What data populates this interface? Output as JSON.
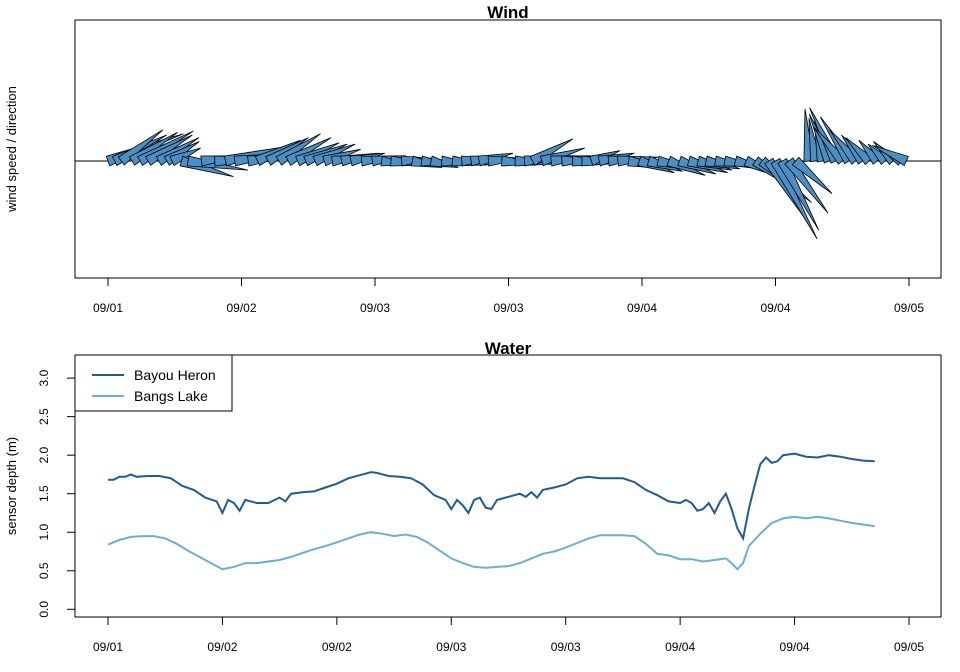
{
  "chart_data": [
    {
      "type": "wind-barb",
      "title": "Wind",
      "ylabel": "wind speed / direction",
      "x_ticks": [
        "09/01",
        "09/02",
        "09/03",
        "09/03",
        "09/04",
        "09/04",
        "09/05"
      ],
      "arrow_color": "#4b8fc4",
      "vectors": [
        [
          0.0,
          5.8,
          2.1
        ],
        [
          0.05,
          4.0,
          2.0
        ],
        [
          0.1,
          3.2,
          2.4
        ],
        [
          0.18,
          3.5,
          2.2
        ],
        [
          0.24,
          4.1,
          2.3
        ],
        [
          0.3,
          3.4,
          2.0
        ],
        [
          0.38,
          3.1,
          1.8
        ],
        [
          0.44,
          2.5,
          1.5
        ],
        [
          0.48,
          2.2,
          1.0
        ],
        [
          0.55,
          4.0,
          -1.2
        ],
        [
          0.6,
          4.6,
          -0.7
        ],
        [
          0.7,
          3.2,
          0.4
        ],
        [
          0.8,
          4.5,
          0.2
        ],
        [
          0.88,
          5.3,
          1.2
        ],
        [
          0.95,
          4.2,
          0.6
        ],
        [
          1.05,
          3.6,
          0.5
        ],
        [
          1.12,
          3.3,
          1.6
        ],
        [
          1.2,
          3.1,
          1.8
        ],
        [
          1.28,
          3.2,
          2.1
        ],
        [
          1.35,
          3.3,
          1.8
        ],
        [
          1.42,
          3.2,
          1.4
        ],
        [
          1.48,
          3.2,
          1.3
        ],
        [
          1.55,
          3.1,
          1.3
        ],
        [
          1.62,
          2.8,
          0.9
        ],
        [
          1.68,
          2.7,
          0.4
        ],
        [
          1.75,
          2.9,
          0.6
        ],
        [
          1.82,
          2.6,
          0.6
        ],
        [
          1.9,
          2.4,
          0.2
        ],
        [
          1.98,
          2.6,
          0.4
        ],
        [
          2.05,
          2.0,
          -0.3
        ],
        [
          2.12,
          3.5,
          -0.3
        ],
        [
          2.2,
          2.5,
          0.2
        ],
        [
          2.28,
          2.3,
          -0.5
        ],
        [
          2.35,
          2.2,
          -0.3
        ],
        [
          2.42,
          2.1,
          -0.5
        ],
        [
          2.5,
          2.6,
          -0.3
        ],
        [
          2.58,
          2.8,
          -0.3
        ],
        [
          2.65,
          2.6,
          0.2
        ],
        [
          2.72,
          2.4,
          0.4
        ],
        [
          2.78,
          2.6,
          0.6
        ],
        [
          2.85,
          2.8,
          0.2
        ],
        [
          2.95,
          3.0,
          -0.2
        ],
        [
          3.05,
          3.5,
          -0.2
        ],
        [
          3.12,
          3.9,
          0.4
        ],
        [
          3.18,
          3.1,
          1.7
        ],
        [
          3.25,
          3.3,
          1.0
        ],
        [
          3.32,
          3.2,
          0.4
        ],
        [
          3.4,
          3.0,
          0.1
        ],
        [
          3.48,
          3.5,
          -0.2
        ],
        [
          3.55,
          3.6,
          -0.1
        ],
        [
          3.62,
          2.2,
          0.8
        ],
        [
          3.68,
          2.7,
          0.6
        ],
        [
          3.75,
          2.5,
          0.3
        ],
        [
          3.82,
          3.1,
          0.3
        ],
        [
          3.9,
          3.2,
          -0.6
        ],
        [
          3.98,
          2.7,
          -0.9
        ],
        [
          4.05,
          2.6,
          -0.8
        ],
        [
          4.12,
          3.2,
          -0.7
        ],
        [
          4.2,
          2.8,
          -1.1
        ],
        [
          4.28,
          2.8,
          -1.0
        ],
        [
          4.35,
          3.0,
          -0.9
        ],
        [
          4.42,
          2.6,
          -0.7
        ],
        [
          4.48,
          2.6,
          -0.6
        ],
        [
          4.55,
          2.4,
          -0.4
        ],
        [
          4.62,
          2.5,
          -0.4
        ],
        [
          4.7,
          2.7,
          -0.7
        ],
        [
          4.78,
          3.1,
          -1.4
        ],
        [
          4.85,
          3.6,
          -2.5
        ],
        [
          4.9,
          3.8,
          -3.2
        ],
        [
          4.95,
          3.0,
          -4.7
        ],
        [
          5.0,
          3.2,
          -6.0
        ],
        [
          5.05,
          2.8,
          -5.3
        ],
        [
          5.1,
          3.0,
          -4.0
        ],
        [
          5.15,
          2.8,
          -2.5
        ],
        [
          5.2,
          0.0,
          0.0
        ],
        [
          5.25,
          -0.3,
          4.0
        ],
        [
          5.3,
          -0.5,
          3.3
        ],
        [
          5.35,
          -0.6,
          3.2
        ],
        [
          5.4,
          -1.5,
          3.6
        ],
        [
          5.45,
          -2.0,
          4.1
        ],
        [
          5.5,
          -2.2,
          2.6
        ],
        [
          5.55,
          -2.2,
          3.4
        ],
        [
          5.6,
          -2.0,
          2.4
        ],
        [
          5.65,
          -1.6,
          2.0
        ],
        [
          5.7,
          -1.8,
          1.8
        ],
        [
          5.76,
          -1.4,
          1.6
        ],
        [
          5.82,
          -1.3,
          1.3
        ],
        [
          5.88,
          -1.5,
          1.5
        ],
        [
          5.94,
          -1.5,
          0.9
        ],
        [
          5.98,
          -2.6,
          1.2
        ]
      ]
    },
    {
      "type": "line",
      "title": "Water",
      "ylabel": "sensor depth (m)",
      "x_ticks": [
        "09/01",
        "09/02",
        "09/02",
        "09/03",
        "09/03",
        "09/04",
        "09/04",
        "09/05"
      ],
      "y_ticks": [
        "0.0",
        "0.5",
        "1.0",
        "1.5",
        "2.0",
        "2.5",
        "3.0"
      ],
      "ylim": [
        -0.1,
        3.3
      ],
      "legend_position": "top-left",
      "series": [
        {
          "name": "Bayou Heron",
          "color": "#1f5a99",
          "points": [
            [
              0.0,
              1.68
            ],
            [
              0.05,
              1.68
            ],
            [
              0.1,
              1.72
            ],
            [
              0.15,
              1.72
            ],
            [
              0.2,
              1.75
            ],
            [
              0.25,
              1.72
            ],
            [
              0.35,
              1.73
            ],
            [
              0.45,
              1.73
            ],
            [
              0.55,
              1.7
            ],
            [
              0.65,
              1.6
            ],
            [
              0.75,
              1.55
            ],
            [
              0.85,
              1.45
            ],
            [
              0.95,
              1.4
            ],
            [
              1.0,
              1.25
            ],
            [
              1.05,
              1.42
            ],
            [
              1.1,
              1.38
            ],
            [
              1.15,
              1.28
            ],
            [
              1.2,
              1.42
            ],
            [
              1.3,
              1.38
            ],
            [
              1.4,
              1.38
            ],
            [
              1.5,
              1.45
            ],
            [
              1.55,
              1.4
            ],
            [
              1.6,
              1.5
            ],
            [
              1.7,
              1.52
            ],
            [
              1.8,
              1.53
            ],
            [
              1.9,
              1.58
            ],
            [
              2.0,
              1.63
            ],
            [
              2.1,
              1.7
            ],
            [
              2.2,
              1.74
            ],
            [
              2.3,
              1.78
            ],
            [
              2.35,
              1.77
            ],
            [
              2.45,
              1.73
            ],
            [
              2.55,
              1.72
            ],
            [
              2.65,
              1.7
            ],
            [
              2.75,
              1.62
            ],
            [
              2.85,
              1.48
            ],
            [
              2.95,
              1.42
            ],
            [
              3.0,
              1.3
            ],
            [
              3.05,
              1.42
            ],
            [
              3.1,
              1.35
            ],
            [
              3.15,
              1.25
            ],
            [
              3.2,
              1.42
            ],
            [
              3.25,
              1.45
            ],
            [
              3.3,
              1.32
            ],
            [
              3.35,
              1.3
            ],
            [
              3.4,
              1.42
            ],
            [
              3.5,
              1.46
            ],
            [
              3.6,
              1.5
            ],
            [
              3.65,
              1.46
            ],
            [
              3.7,
              1.52
            ],
            [
              3.75,
              1.45
            ],
            [
              3.8,
              1.55
            ],
            [
              3.9,
              1.58
            ],
            [
              4.0,
              1.62
            ],
            [
              4.1,
              1.7
            ],
            [
              4.2,
              1.72
            ],
            [
              4.3,
              1.7
            ],
            [
              4.4,
              1.7
            ],
            [
              4.5,
              1.7
            ],
            [
              4.6,
              1.65
            ],
            [
              4.7,
              1.55
            ],
            [
              4.8,
              1.48
            ],
            [
              4.9,
              1.4
            ],
            [
              5.0,
              1.38
            ],
            [
              5.05,
              1.42
            ],
            [
              5.1,
              1.38
            ],
            [
              5.15,
              1.28
            ],
            [
              5.2,
              1.3
            ],
            [
              5.25,
              1.38
            ],
            [
              5.3,
              1.25
            ],
            [
              5.35,
              1.4
            ],
            [
              5.4,
              1.5
            ],
            [
              5.45,
              1.3
            ],
            [
              5.5,
              1.05
            ],
            [
              5.55,
              0.92
            ],
            [
              5.6,
              1.3
            ],
            [
              5.65,
              1.6
            ],
            [
              5.7,
              1.88
            ],
            [
              5.75,
              1.97
            ],
            [
              5.8,
              1.9
            ],
            [
              5.85,
              1.92
            ],
            [
              5.9,
              2.0
            ],
            [
              6.0,
              2.02
            ],
            [
              6.1,
              1.98
            ],
            [
              6.2,
              1.97
            ],
            [
              6.3,
              2.0
            ],
            [
              6.4,
              1.98
            ],
            [
              6.5,
              1.95
            ],
            [
              6.6,
              1.93
            ],
            [
              6.7,
              1.92
            ]
          ]
        },
        {
          "name": "Bangs Lake",
          "color": "#6baed6",
          "points": [
            [
              0.0,
              0.84
            ],
            [
              0.1,
              0.9
            ],
            [
              0.2,
              0.94
            ],
            [
              0.3,
              0.95
            ],
            [
              0.4,
              0.95
            ],
            [
              0.5,
              0.92
            ],
            [
              0.6,
              0.85
            ],
            [
              0.7,
              0.76
            ],
            [
              0.8,
              0.68
            ],
            [
              0.9,
              0.6
            ],
            [
              1.0,
              0.52
            ],
            [
              1.1,
              0.55
            ],
            [
              1.2,
              0.6
            ],
            [
              1.3,
              0.6
            ],
            [
              1.4,
              0.62
            ],
            [
              1.5,
              0.64
            ],
            [
              1.6,
              0.68
            ],
            [
              1.7,
              0.73
            ],
            [
              1.8,
              0.78
            ],
            [
              1.9,
              0.82
            ],
            [
              2.0,
              0.87
            ],
            [
              2.1,
              0.92
            ],
            [
              2.2,
              0.97
            ],
            [
              2.3,
              1.0
            ],
            [
              2.4,
              0.98
            ],
            [
              2.5,
              0.95
            ],
            [
              2.6,
              0.97
            ],
            [
              2.7,
              0.94
            ],
            [
              2.8,
              0.86
            ],
            [
              2.9,
              0.76
            ],
            [
              3.0,
              0.66
            ],
            [
              3.1,
              0.6
            ],
            [
              3.2,
              0.55
            ],
            [
              3.3,
              0.54
            ],
            [
              3.4,
              0.55
            ],
            [
              3.5,
              0.56
            ],
            [
              3.6,
              0.6
            ],
            [
              3.7,
              0.66
            ],
            [
              3.8,
              0.72
            ],
            [
              3.9,
              0.75
            ],
            [
              4.0,
              0.8
            ],
            [
              4.1,
              0.86
            ],
            [
              4.2,
              0.92
            ],
            [
              4.3,
              0.96
            ],
            [
              4.4,
              0.96
            ],
            [
              4.5,
              0.96
            ],
            [
              4.6,
              0.95
            ],
            [
              4.7,
              0.85
            ],
            [
              4.8,
              0.72
            ],
            [
              4.9,
              0.7
            ],
            [
              5.0,
              0.65
            ],
            [
              5.1,
              0.65
            ],
            [
              5.2,
              0.62
            ],
            [
              5.3,
              0.64
            ],
            [
              5.4,
              0.66
            ],
            [
              5.45,
              0.6
            ],
            [
              5.5,
              0.52
            ],
            [
              5.55,
              0.6
            ],
            [
              5.6,
              0.82
            ],
            [
              5.7,
              0.98
            ],
            [
              5.8,
              1.12
            ],
            [
              5.9,
              1.18
            ],
            [
              6.0,
              1.2
            ],
            [
              6.1,
              1.18
            ],
            [
              6.2,
              1.2
            ],
            [
              6.3,
              1.18
            ],
            [
              6.4,
              1.15
            ],
            [
              6.5,
              1.12
            ],
            [
              6.6,
              1.1
            ],
            [
              6.7,
              1.08
            ]
          ]
        }
      ]
    }
  ]
}
